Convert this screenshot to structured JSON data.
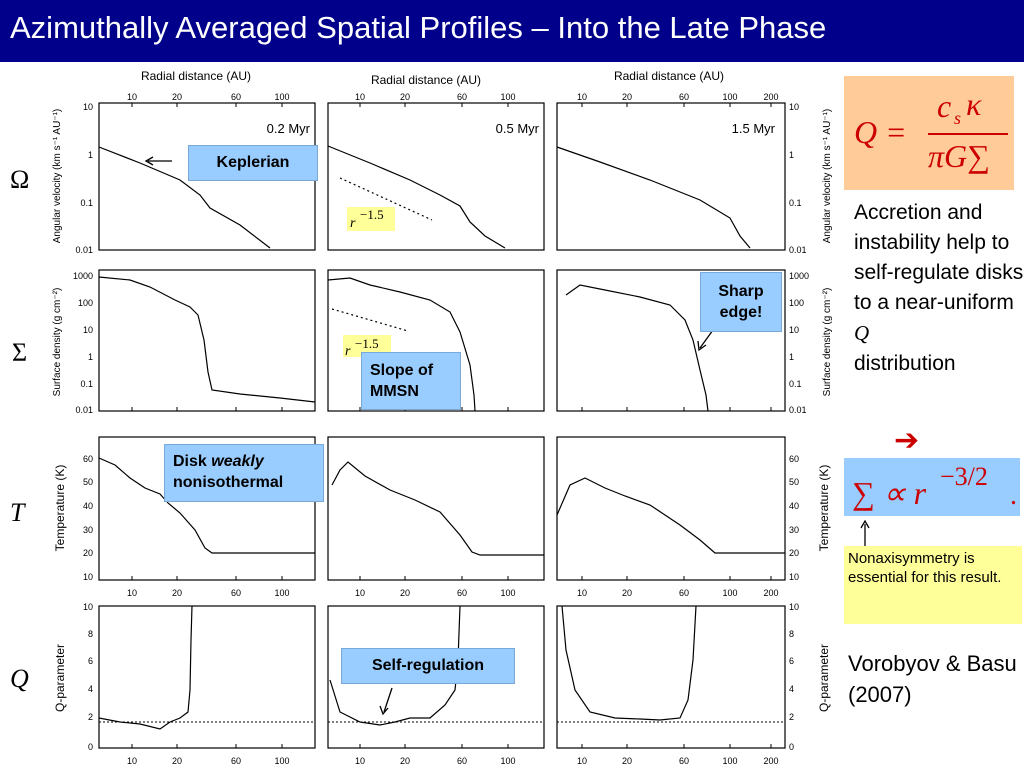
{
  "slide": {
    "title": "Azimuthally Averaged Spatial Profiles – Into the Late Phase"
  },
  "row_symbols": [
    "Ω",
    "Σ",
    "T",
    "Q"
  ],
  "figure": {
    "top_axis_label": "Radial distance (AU)",
    "time_labels": [
      "0.2 Myr",
      "0.5 Myr",
      "1.5 Myr"
    ],
    "x_ticks_cols12": [
      "10",
      "20",
      "60",
      "100"
    ],
    "x_ticks_col3": [
      "10",
      "20",
      "60",
      "100",
      "200"
    ],
    "rows": [
      {
        "ylabel": "Angular velocity (km s⁻¹ AU⁻¹)",
        "yticks": [
          "10",
          "1",
          "0.1",
          "0.01"
        ]
      },
      {
        "ylabel": "Surface density (g cm⁻²)",
        "yticks": [
          "1000",
          "100",
          "10",
          "1",
          "0.1",
          "0.01"
        ]
      },
      {
        "ylabel": "Temperature (K)",
        "yticks": [
          "60",
          "50",
          "40",
          "30",
          "20",
          "10"
        ]
      },
      {
        "ylabel": "Q-parameter",
        "yticks": [
          "10",
          "8",
          "6",
          "4",
          "2",
          "0"
        ]
      }
    ]
  },
  "annotations": {
    "keplerian": "Keplerian",
    "r_label": "r",
    "r_exponent": "−1.5",
    "slope_mmsn": "Slope of MMSN",
    "sharp_edge": "Sharp edge!",
    "disk_weakly_1": "Disk ",
    "disk_weakly_em": "weakly",
    "disk_weakly_2": "nonisothermal",
    "self_regulation": "Self-regulation"
  },
  "side": {
    "q_formula": {
      "lhs": "Q =",
      "num_c": "c",
      "num_s": "s",
      "num_kappa": "κ",
      "den": "πG∑"
    },
    "accretion_text": "Accretion and instability help to self-regulate disks to a near-uniform",
    "accretion_q": "Q",
    "accretion_tail": "distribution",
    "arrow_glyph": "➔",
    "sigma_formula": {
      "lhs": "∑ ∝ r",
      "exp": "−3/2",
      "tail": "."
    },
    "nonaxi_note": "Nonaxisymmetry is essential for this result.",
    "citation": "Vorobyov & Basu (2007)"
  },
  "colors": {
    "header_bg": "#00008b",
    "blue_box": "#99ccff",
    "orange_box": "#ffcc99",
    "yellow_box": "#ffff99",
    "r_box": "#ffff99",
    "arrow_red": "#cc0000"
  }
}
